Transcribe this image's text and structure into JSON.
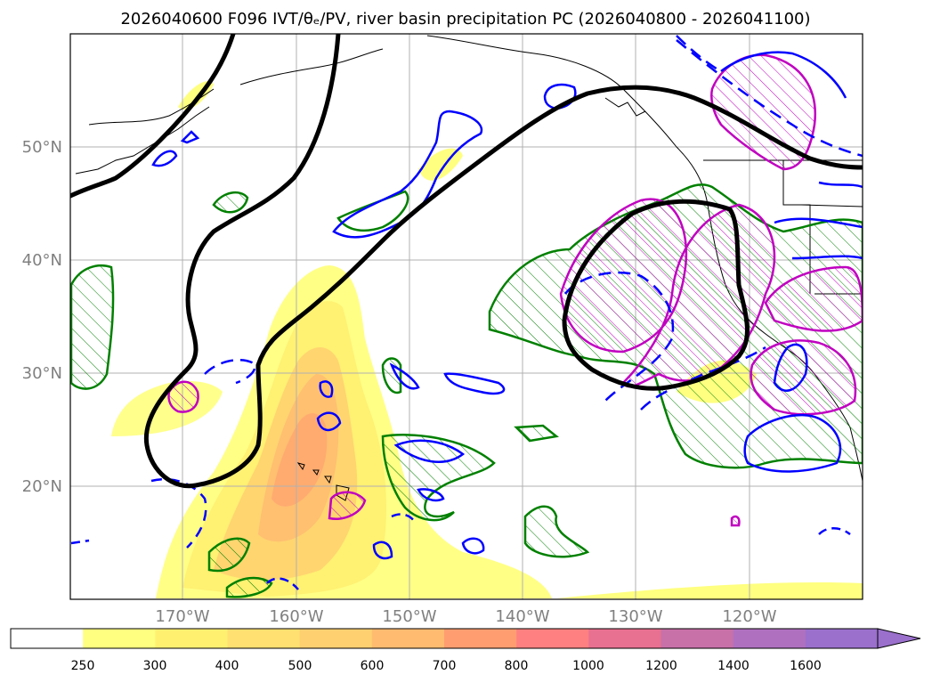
{
  "title": "2026040600 F096 IVT/θₑ/PV, river basin precipitation PC (2026040800 - 2026041100)",
  "map": {
    "lat_labels": [
      "50°N",
      "40°N",
      "30°N",
      "20°N"
    ],
    "lon_labels": [
      "170°W",
      "160°W",
      "150°W",
      "140°W",
      "130°W",
      "120°W"
    ]
  },
  "colorbar": {
    "labels": [
      "250",
      "300",
      "400",
      "500",
      "600",
      "700",
      "800",
      "1000",
      "1200",
      "1400",
      "1600"
    ],
    "colors": [
      "#ffffff",
      "#ffff80",
      "#fff070",
      "#ffe070",
      "#ffd070",
      "#ffbc70",
      "#ff9d70",
      "#ff8080",
      "#e87090",
      "#c870a8",
      "#b070c0",
      "#9a70cc"
    ]
  },
  "colors": {
    "ivt_fill": "#ffeb5a",
    "pv_contour": "#000000",
    "theta_e_contour": "#0000ff",
    "precip_pc_green": "#008000",
    "precip_pc_magenta": "#c000c0",
    "grid": "#b0b0b0"
  }
}
